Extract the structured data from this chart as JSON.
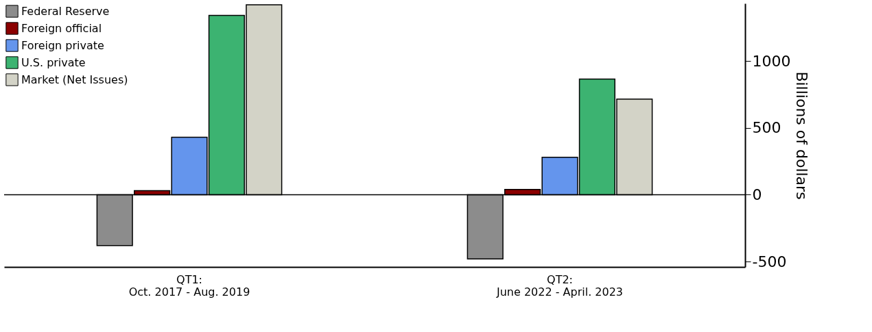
{
  "chart_data": {
    "type": "bar",
    "ylabel": "Billions of dollars",
    "categories": [
      "QT1:\nOct. 2017 - Aug. 2019",
      "QT2:\nJune 2022 - April. 2023"
    ],
    "series": [
      {
        "name": "Federal Reserve",
        "color": "#8c8c8c",
        "values": [
          -380,
          -480
        ]
      },
      {
        "name": "Foreign official",
        "color": "#8b0000",
        "values": [
          30,
          40
        ]
      },
      {
        "name": "Foreign private",
        "color": "#6495ed",
        "values": [
          430,
          280
        ]
      },
      {
        "name": "U.S. private",
        "color": "#3cb371",
        "values": [
          1340,
          865
        ]
      },
      {
        "name": "Market (Net Issues)",
        "color": "#d3d3c7",
        "values": [
          1420,
          715
        ]
      }
    ],
    "ylim": [
      -540,
      1430
    ],
    "yticks": [
      -500,
      0,
      500,
      1000
    ],
    "ref_lines": [
      {
        "axis": "y",
        "value": 0,
        "color": "#000000"
      }
    ],
    "grid": false,
    "legend": "top left"
  }
}
